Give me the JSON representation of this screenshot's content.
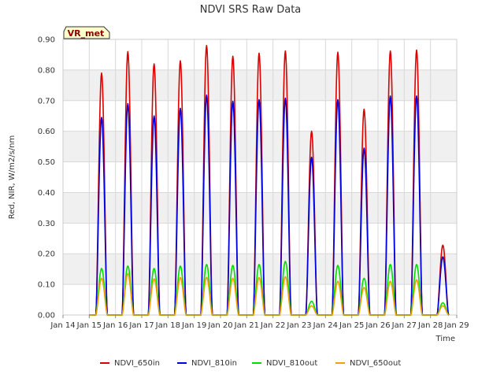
{
  "chart_data": {
    "type": "line",
    "title": "NDVI SRS Raw Data",
    "xlabel": "Time",
    "ylabel": "Red, NIR, W/m2/s/nm",
    "xlim": [
      14,
      29
    ],
    "ylim": [
      0,
      0.9
    ],
    "x_ticks": [
      14,
      15,
      16,
      17,
      18,
      19,
      20,
      21,
      22,
      23,
      24,
      25,
      26,
      27,
      28,
      29
    ],
    "x_tick_labels": [
      "Jan 14",
      "Jan 15",
      "Jan 16",
      "Jan 17",
      "Jan 18",
      "Jan 19",
      "Jan 20",
      "Jan 21",
      "Jan 22",
      "Jan 23",
      "Jan 24",
      "Jan 25",
      "Jan 26",
      "Jan 27",
      "Jan 28",
      "Jan 29"
    ],
    "y_ticks": [
      0,
      0.1,
      0.2,
      0.3,
      0.4,
      0.5,
      0.6,
      0.7,
      0.8,
      0.9
    ],
    "y_tick_labels": [
      "0.00",
      "0.10",
      "0.20",
      "0.30",
      "0.40",
      "0.50",
      "0.60",
      "0.70",
      "0.80",
      "0.90"
    ],
    "badge": "VR_met",
    "day_peak_times": [
      15.47,
      16.47,
      17.47,
      18.47,
      19.47,
      20.47,
      21.47,
      22.47,
      23.47,
      24.47,
      25.47,
      26.47,
      27.47,
      28.47
    ],
    "series": [
      {
        "name": "NDVI_650in",
        "color": "#dd0000",
        "peaks": [
          0.79,
          0.86,
          0.82,
          0.83,
          0.88,
          0.845,
          0.855,
          0.862,
          0.6,
          0.858,
          0.672,
          0.862,
          0.865,
          0.228
        ]
      },
      {
        "name": "NDVI_810in",
        "color": "#0000dd",
        "peaks": [
          0.645,
          0.69,
          0.65,
          0.675,
          0.718,
          0.698,
          0.703,
          0.708,
          0.515,
          0.703,
          0.545,
          0.715,
          0.715,
          0.19
        ]
      },
      {
        "name": "NDVI_810out",
        "color": "#00dd00",
        "peaks": [
          0.152,
          0.16,
          0.152,
          0.16,
          0.165,
          0.162,
          0.165,
          0.175,
          0.045,
          0.162,
          0.12,
          0.165,
          0.165,
          0.04
        ]
      },
      {
        "name": "NDVI_650out",
        "color": "#f0a000",
        "peaks": [
          0.12,
          0.135,
          0.118,
          0.122,
          0.123,
          0.12,
          0.122,
          0.125,
          0.03,
          0.11,
          0.09,
          0.11,
          0.115,
          0.03
        ]
      }
    ]
  },
  "colors": {
    "band": "#f0f0f0",
    "grid": "#d8d8d8",
    "axis": "#888888",
    "badge_fill": "#ffffcc"
  }
}
